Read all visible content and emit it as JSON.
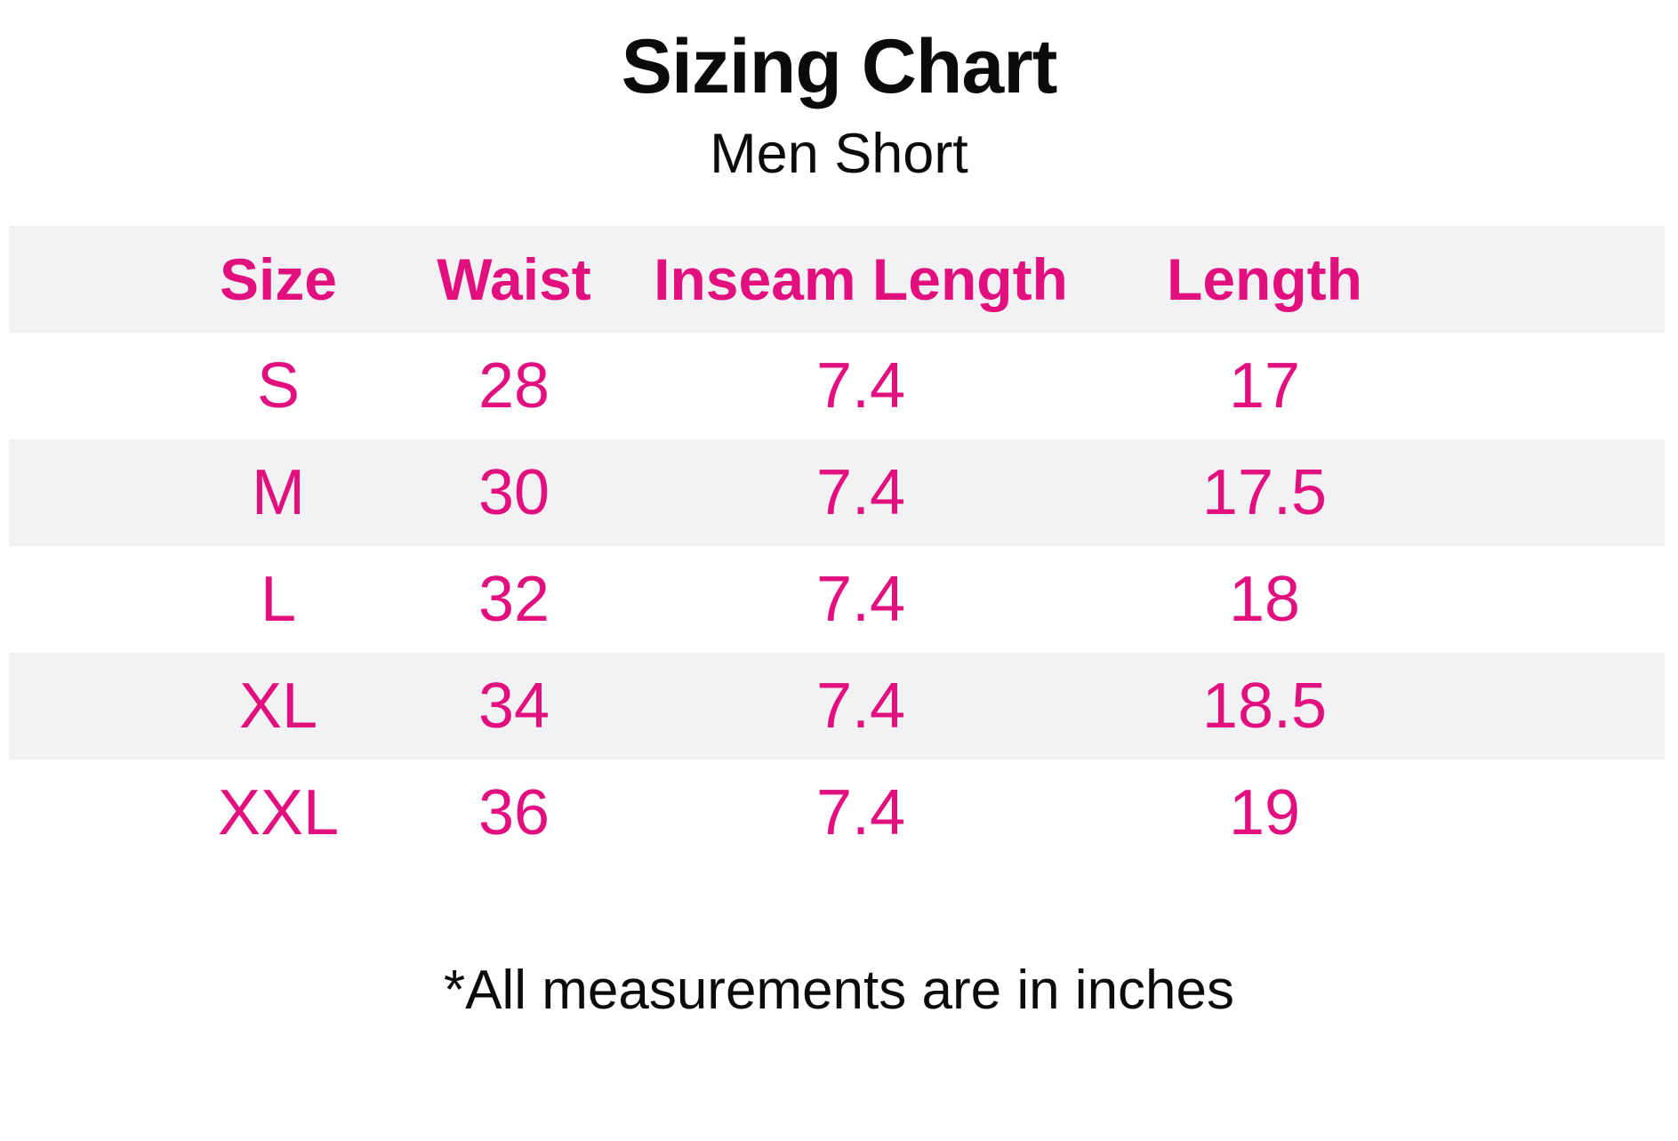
{
  "title": "Sizing Chart",
  "subtitle": "Men Short",
  "note": "*All measurements are in inches",
  "colors": {
    "accent": "#e1107e",
    "band": "#f2f2f4",
    "ink": "#0b0b0b"
  },
  "chart_data": {
    "type": "table",
    "title": "Sizing Chart",
    "subtitle": "Men Short",
    "units": "inches",
    "columns": [
      "Size",
      "Waist",
      "Inseam Length",
      "Length"
    ],
    "rows": [
      [
        "S",
        "28",
        "7.4",
        "17"
      ],
      [
        "M",
        "30",
        "7.4",
        "17.5"
      ],
      [
        "L",
        "32",
        "7.4",
        "18"
      ],
      [
        "XL",
        "34",
        "7.4",
        "18.5"
      ],
      [
        "XXL",
        "36",
        "7.4",
        "19"
      ]
    ],
    "banded_row_indexes": [
      1,
      3
    ],
    "layout": {
      "header_banded": true,
      "grid": "off",
      "legend": "none"
    }
  }
}
